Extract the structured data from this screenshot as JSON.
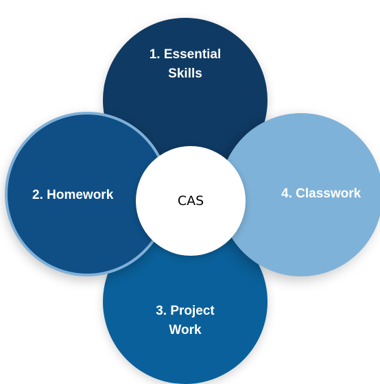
{
  "diagram": {
    "center": {
      "label": "CAS",
      "color": "#ffffff"
    },
    "circles": [
      {
        "label": "1. Essential\nSkills",
        "color": "#0f3a63"
      },
      {
        "label": "2. Homework",
        "color": "#0f4f86"
      },
      {
        "label": "3. Project\nWork",
        "color": "#0a609a"
      },
      {
        "label": "4. Classwork",
        "color": "#7fb2d8"
      }
    ]
  }
}
